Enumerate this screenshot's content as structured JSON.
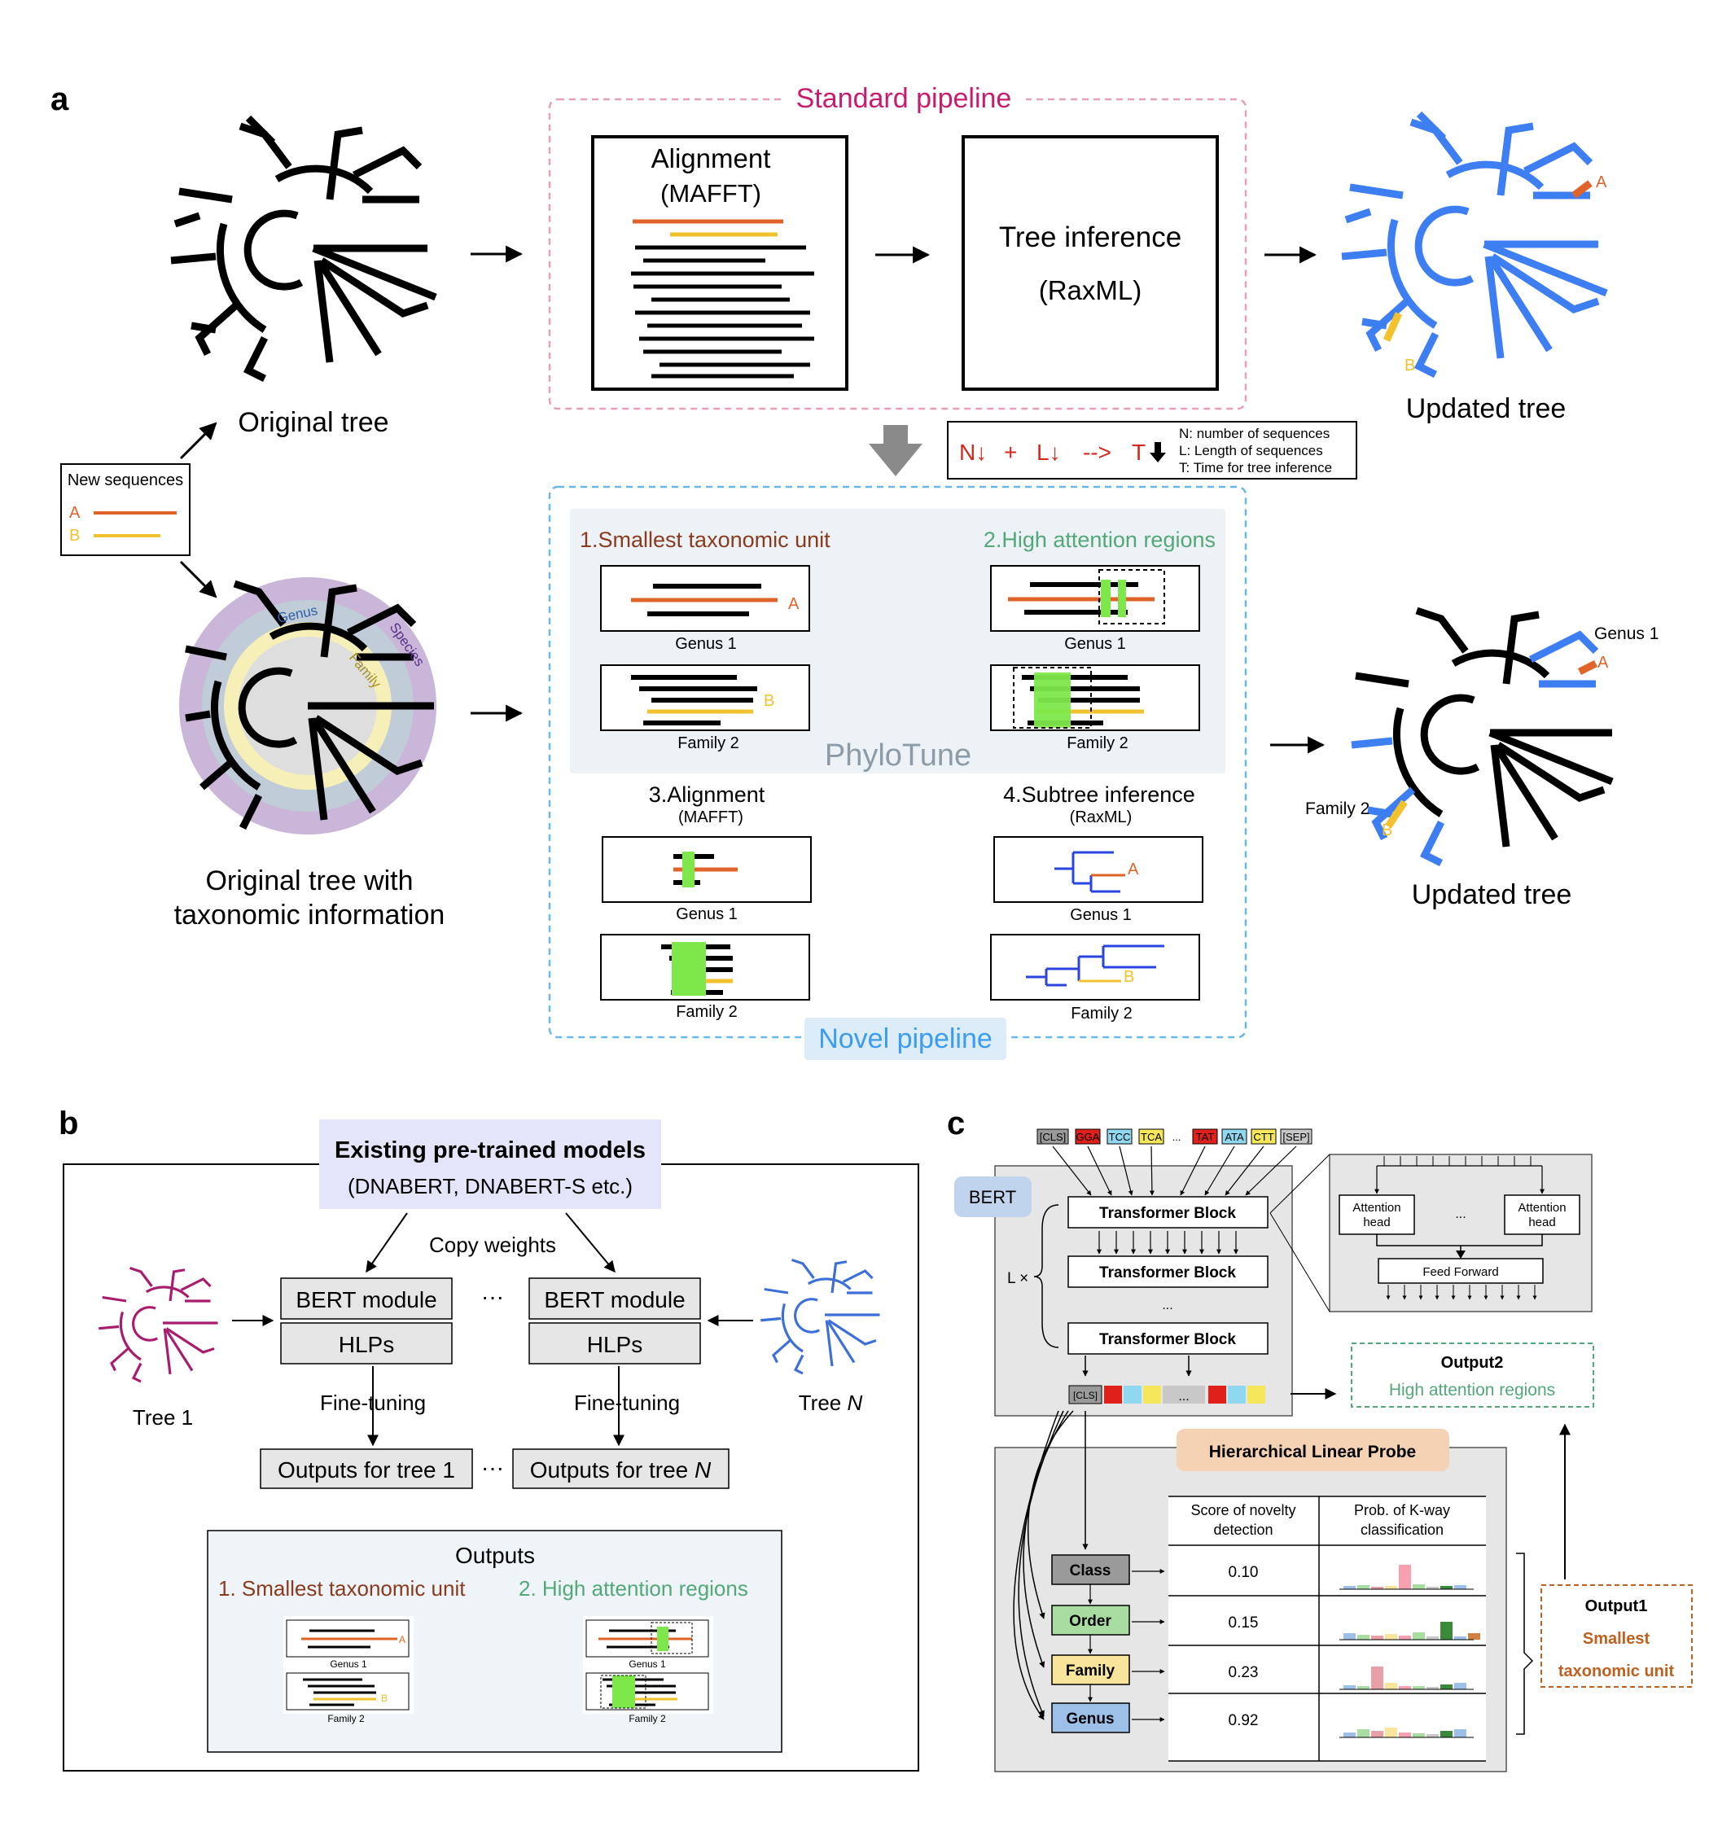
{
  "panels": {
    "a": "a",
    "b": "b",
    "c": "c"
  },
  "a": {
    "standard_title": "Standard pipeline",
    "alignment_title": "Alignment",
    "alignment_tool": "(MAFFT)",
    "tree_inference_title": "Tree inference",
    "tree_inference_tool": "(RaxML)",
    "original_tree": "Original tree",
    "updated_tree": "Updated tree",
    "new_sequences_title": "New sequences",
    "seq_a": "A",
    "seq_b": "B",
    "ring_genus": "Genus",
    "ring_family": "Family",
    "ring_species": "Species",
    "original_tax_line1": "Original tree with",
    "original_tax_line2": "taxonomic information",
    "legend_formula": {
      "n": "N↓",
      "plus": "+",
      "l": "L↓",
      "arrow": "-->",
      "t": "T"
    },
    "legend_n": "N: number of sequences",
    "legend_l": "L: Length of sequences",
    "legend_t": "T: Time for tree inference",
    "step1": "1.Smallest taxonomic unit",
    "step2": "2.High attention regions",
    "step3": "3.Alignment",
    "step3_tool": "(MAFFT)",
    "step4": "4.Subtree inference",
    "step4_tool": "(RaxML)",
    "genus1": "Genus 1",
    "family2": "Family 2",
    "phylotune": "PhyloTune",
    "novel_title": "Novel pipeline"
  },
  "b": {
    "existing_title": "Existing pre-trained models",
    "existing_sub": "(DNABERT, DNABERT-S etc.)",
    "copy_weights": "Copy weights",
    "bert_module": "BERT module",
    "hlps": "HLPs",
    "ellipsis": "···",
    "fine_tuning": "Fine-tuning",
    "tree1": "Tree 1",
    "treeN_prefix": "Tree ",
    "treeN_n": "N",
    "outputs_tree1": "Outputs for tree 1",
    "outputs_treeN_prefix": "Outputs for tree ",
    "outputs_treeN_n": "N",
    "outputs_title": "Outputs",
    "out1": "1. Smallest taxonomic unit",
    "out2": "2. High attention regions",
    "genus1": "Genus 1",
    "family2": "Family 2",
    "a": "A",
    "b": "B"
  },
  "c": {
    "tokens": [
      "[CLS]",
      "GGA",
      "TCC",
      "TCA",
      "...",
      "TAT",
      "ATA",
      "CTT",
      "[SEP]"
    ],
    "token_colors": [
      "#9a9a9a",
      "#e0201b",
      "#8fd8f0",
      "#f5e65a",
      "#ffffff",
      "#e0201b",
      "#8fd8f0",
      "#f5e65a",
      "#c8c8c8"
    ],
    "bert": "BERT",
    "transformer_block": "Transformer Block",
    "lx": "L ×",
    "dots": "...",
    "attention_head": [
      "Attention",
      "head"
    ],
    "feed_forward": "Feed Forward",
    "cls": "[CLS]",
    "output2_title": "Output2",
    "output2_sub": "High attention regions",
    "hlp_title": "Hierarchical Linear Probe",
    "col1": [
      "Score of novelty",
      "detection"
    ],
    "col2": [
      "Prob. of K-way",
      "classification"
    ],
    "rows": [
      {
        "label": "Class",
        "score": "0.10",
        "color": "#9a9a9a"
      },
      {
        "label": "Order",
        "score": "0.15",
        "color": "#a8dca0"
      },
      {
        "label": "Family",
        "score": "0.23",
        "color": "#f8e49a"
      },
      {
        "label": "Genus",
        "score": "0.92",
        "color": "#9cc0e8"
      }
    ],
    "output1_title": "Output1",
    "output1_line1": "Smallest",
    "output1_line2": "taxonomic unit"
  },
  "colors": {
    "orange": "#e0632a",
    "yellow": "#f2c12e",
    "green": "#7ee84a",
    "blue": "#3d7ff2",
    "standard_accent": "#c81c6e",
    "novel_accent": "#3c9cf0",
    "phylo_green": "#52a878",
    "brown": "#8b3a1e"
  }
}
